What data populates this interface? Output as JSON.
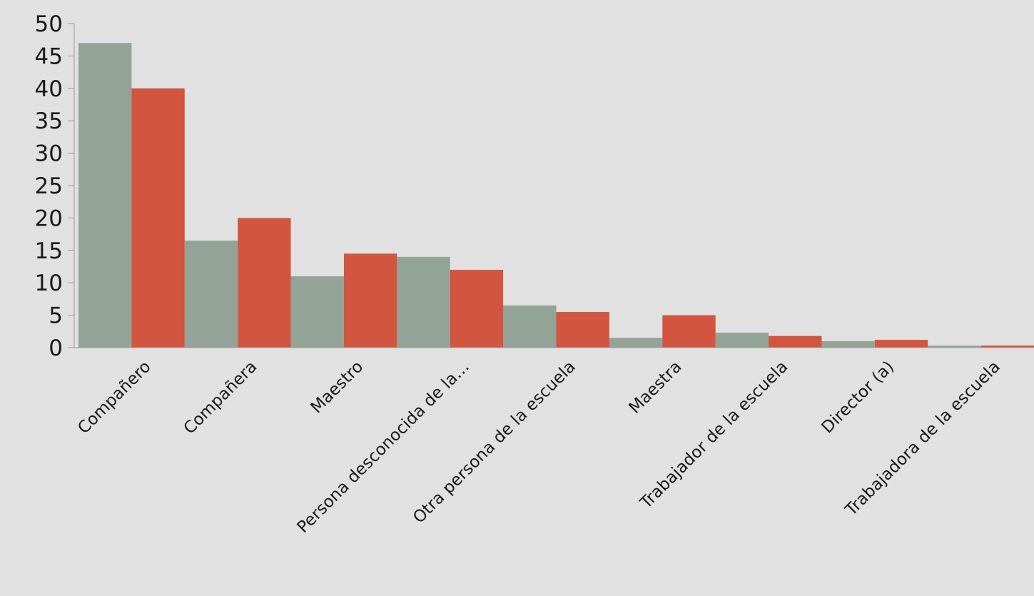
{
  "chart_data": {
    "type": "bar",
    "categories": [
      "Compañero",
      "Compañera",
      "Maestro",
      "Persona desconocida de la…",
      "Otra persona de la escuela",
      "Maestra",
      "Trabajador de la escuela",
      "Director (a)",
      "Trabajadora de la escuela"
    ],
    "series": [
      {
        "color": "#93a398",
        "values": [
          47,
          16.5,
          11,
          14,
          6.5,
          1.5,
          2.3,
          1,
          0.3
        ]
      },
      {
        "color": "#d1553f",
        "values": [
          40,
          20,
          14.5,
          12,
          5.5,
          5,
          1.8,
          1.2,
          0.3
        ]
      }
    ],
    "yticks": [
      "0",
      "5",
      "10",
      "15",
      "20",
      "25",
      "30",
      "35",
      "40",
      "45",
      "50"
    ],
    "ylim": [
      0,
      50
    ],
    "grid": false,
    "legend": "none",
    "title": "",
    "xlabel": "",
    "ylabel": ""
  }
}
